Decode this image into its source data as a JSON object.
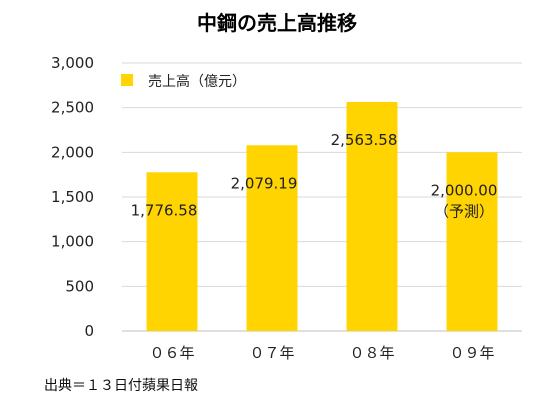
{
  "chart_data": {
    "type": "bar",
    "title": "中鋼の売上高推移",
    "categories": [
      "０６年",
      "０７年",
      "０８年",
      "０９年"
    ],
    "series": [
      {
        "name": "売上高（億元）",
        "values": [
          1776.58,
          2079.19,
          2563.58,
          2000.0
        ],
        "color": "#FFD400"
      }
    ],
    "data_labels": [
      "1,776.58",
      "2,079.19",
      "2,563.58",
      "2,000.00"
    ],
    "data_label_notes": [
      "",
      "",
      "",
      "（予測）"
    ],
    "ylim": [
      0,
      3000
    ],
    "yticks": [
      0,
      500,
      1000,
      1500,
      2000,
      2500,
      3000
    ],
    "ytick_labels": [
      "0",
      "500",
      "1,000",
      "1,500",
      "2,000",
      "2,500",
      "3,000"
    ],
    "grid": true,
    "legend_position": "top-left",
    "source": "出典＝１３日付蘋果日報",
    "colors": {
      "bar": "#FFD400",
      "grid": "#d9d9d9",
      "axis": "#bfbfbf"
    }
  }
}
